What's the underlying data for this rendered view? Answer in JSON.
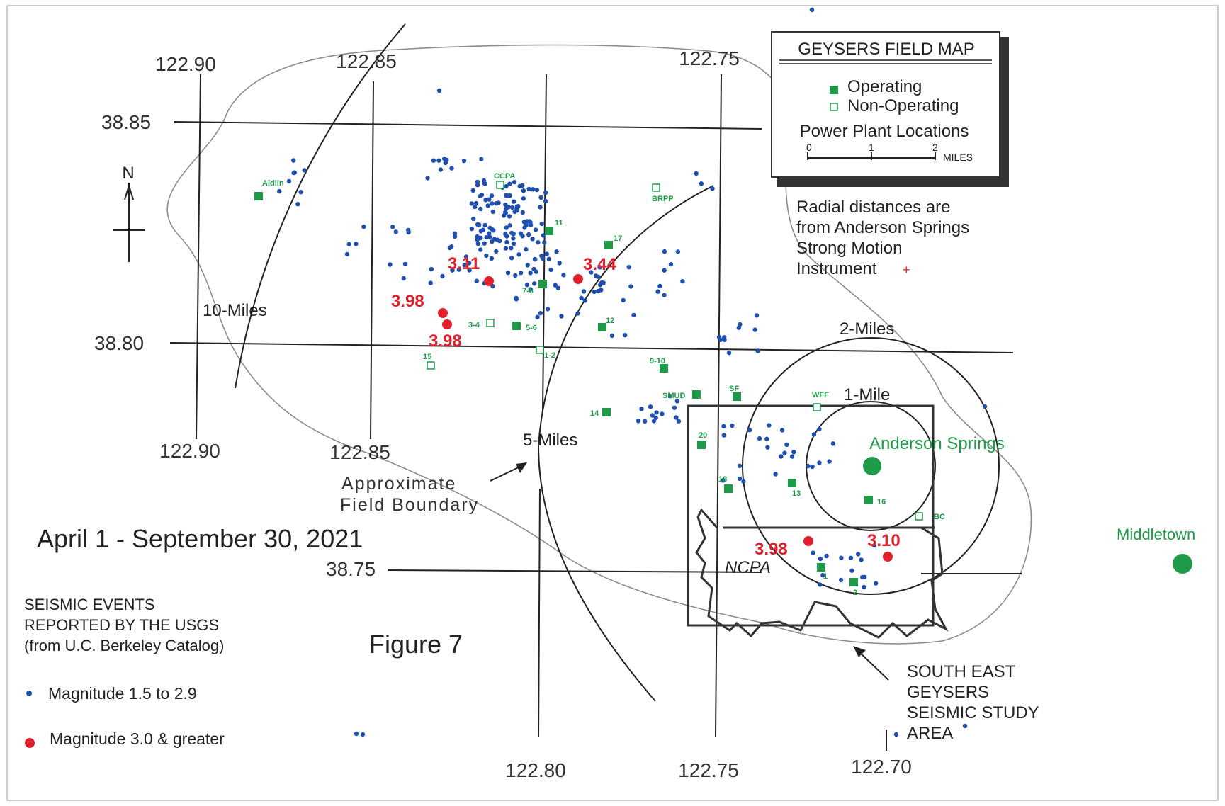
{
  "legend": {
    "title": "GEYSERS FIELD MAP",
    "operating": "Operating",
    "non_operating": "Non-Operating",
    "plant_locations": "Power Plant Locations",
    "scale_ticks": [
      "0",
      "1",
      "2"
    ],
    "scale_unit": "MILES"
  },
  "radial_note": [
    "Radial distances are",
    "from Anderson Springs",
    "Strong Motion",
    "Instrument"
  ],
  "colors": {
    "operating": "#1e9a48",
    "event_small": "#1f4fae",
    "event_large": "#e0202c",
    "line": "#222222"
  },
  "date_range": "April 1 - September 30, 2021",
  "figure_label": "Figure 7",
  "seismic_legend": {
    "heading": [
      "SEISMIC EVENTS",
      "REPORTED BY THE USGS",
      "(from U.C. Berkeley Catalog)"
    ],
    "small": "Magnitude 1.5 to 2.9",
    "large": "Magnitude 3.0 & greater"
  },
  "lon_labels": {
    "w090": "122.90",
    "w085": "122.85",
    "w080": "122.80",
    "w075": "122.75",
    "w070": "122.70"
  },
  "lat_labels": {
    "n3885": "38.85",
    "n3880": "38.80",
    "n3875": "38.75"
  },
  "north": "N",
  "radius_labels": {
    "r10": "10-Miles",
    "r5": "5-Miles",
    "r2": "2-Miles",
    "r1": "1-Mile"
  },
  "field_boundary": [
    "Approximate",
    "Field Boundary"
  ],
  "study_area": [
    "SOUTH EAST",
    "GEYSERS",
    "SEISMIC STUDY",
    "AREA"
  ],
  "ncpa": "NCPA",
  "anderson_springs": "Anderson Springs",
  "middletown": "Middletown",
  "plants": [
    {
      "label": "Aidlin",
      "operating": true
    },
    {
      "label": "CCPA",
      "operating": false
    },
    {
      "label": "BRPP",
      "operating": false
    },
    {
      "label": "11",
      "operating": true
    },
    {
      "label": "17",
      "operating": true
    },
    {
      "label": "7-8",
      "operating": true
    },
    {
      "label": "5-6",
      "operating": true
    },
    {
      "label": "3-4",
      "operating": false
    },
    {
      "label": "12",
      "operating": true
    },
    {
      "label": "1-2",
      "operating": false
    },
    {
      "label": "15",
      "operating": false
    },
    {
      "label": "9-10",
      "operating": true
    },
    {
      "label": "SMUD",
      "operating": true
    },
    {
      "label": "SF",
      "operating": true
    },
    {
      "label": "WFF",
      "operating": false
    },
    {
      "label": "14",
      "operating": true
    },
    {
      "label": "20",
      "operating": true
    },
    {
      "label": "18",
      "operating": true
    },
    {
      "label": "13",
      "operating": true
    },
    {
      "label": "16",
      "operating": true
    },
    {
      "label": "BC",
      "operating": false
    },
    {
      "label": "1",
      "operating": true
    },
    {
      "label": "2",
      "operating": true
    }
  ],
  "large_events": [
    {
      "mag": "3.11"
    },
    {
      "mag": "3.44"
    },
    {
      "mag": "3.98"
    },
    {
      "mag": "3.98"
    },
    {
      "mag": "3.98"
    },
    {
      "mag": "3.10"
    }
  ]
}
